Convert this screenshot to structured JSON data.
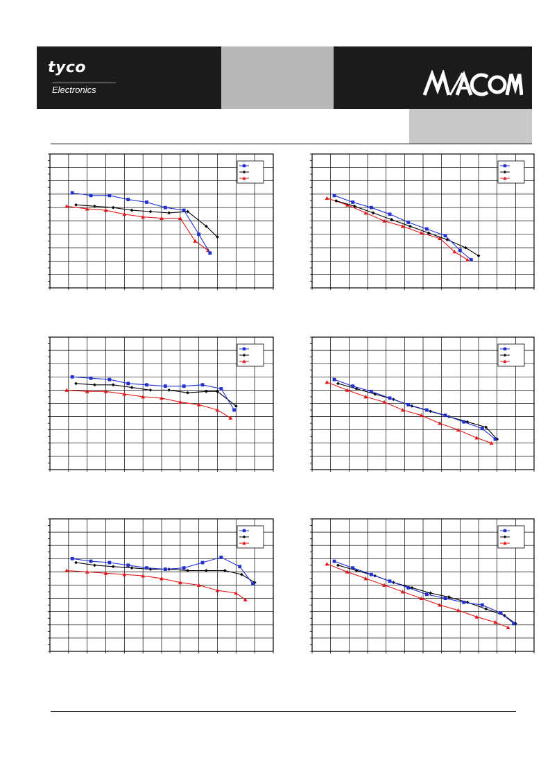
{
  "header": {
    "brand_left": "tyco",
    "brand_left_sub": "Electronics",
    "brand_right": "M/ACOM",
    "colors": {
      "band_dark": "#1b1b1b",
      "band_mid": "#b8b8b8",
      "subheader_box": "#c8c8c8"
    }
  },
  "series_style": [
    {
      "color": "#1f2fd0",
      "marker": "square"
    },
    {
      "color": "#000000",
      "marker": "diamond"
    },
    {
      "color": "#e01818",
      "marker": "triangle"
    }
  ],
  "chart_data": [
    {
      "type": "line",
      "title": "",
      "xlabel": "",
      "ylabel": "",
      "xlim": [
        0,
        12
      ],
      "ylim": [
        0,
        10
      ],
      "grid": true,
      "legend_position": "top-right",
      "series": [
        {
          "x": [
            1.2,
            2.2,
            3.2,
            4.2,
            5.2,
            6.2,
            7.2,
            8.0,
            8.6
          ],
          "y": [
            7.1,
            6.9,
            6.9,
            6.6,
            6.4,
            6.0,
            5.8,
            4.0,
            2.6
          ]
        },
        {
          "x": [
            1.4,
            2.4,
            3.4,
            4.4,
            5.4,
            6.4,
            7.4,
            8.4,
            9.0
          ],
          "y": [
            6.2,
            6.1,
            6.0,
            5.8,
            5.7,
            5.6,
            5.7,
            4.6,
            3.8
          ]
        },
        {
          "x": [
            0.9,
            2.0,
            3.0,
            4.0,
            5.0,
            6.0,
            7.0,
            7.8,
            8.5
          ],
          "y": [
            6.1,
            5.9,
            5.8,
            5.5,
            5.3,
            5.2,
            5.2,
            3.5,
            2.8
          ]
        }
      ]
    },
    {
      "type": "line",
      "title": "",
      "xlabel": "",
      "ylabel": "",
      "xlim": [
        0,
        12
      ],
      "ylim": [
        0,
        10
      ],
      "grid": true,
      "legend_position": "top-right",
      "series": [
        {
          "x": [
            1.2,
            2.2,
            3.2,
            4.2,
            5.2,
            6.2,
            7.2,
            8.0,
            8.6
          ],
          "y": [
            6.9,
            6.4,
            6.0,
            5.5,
            4.9,
            4.4,
            3.9,
            2.8,
            2.1
          ]
        },
        {
          "x": [
            1.3,
            2.3,
            3.3,
            4.3,
            5.3,
            6.3,
            7.3,
            8.3,
            9.0
          ],
          "y": [
            6.5,
            6.1,
            5.6,
            5.1,
            4.6,
            4.1,
            3.6,
            3.0,
            2.4
          ]
        },
        {
          "x": [
            0.8,
            1.9,
            2.9,
            3.9,
            4.9,
            5.9,
            6.9,
            7.7,
            8.4
          ],
          "y": [
            6.7,
            6.2,
            5.6,
            5.0,
            4.6,
            4.1,
            3.7,
            2.7,
            2.1
          ]
        }
      ]
    },
    {
      "type": "line",
      "title": "",
      "xlabel": "",
      "ylabel": "",
      "xlim": [
        0,
        12
      ],
      "ylim": [
        0,
        10
      ],
      "grid": true,
      "legend_position": "top-right",
      "series": [
        {
          "x": [
            1.2,
            2.2,
            3.2,
            4.2,
            5.2,
            6.2,
            7.2,
            8.2,
            9.2,
            9.9
          ],
          "y": [
            7.0,
            6.9,
            6.8,
            6.5,
            6.4,
            6.3,
            6.3,
            6.4,
            6.1,
            4.5
          ]
        },
        {
          "x": [
            1.4,
            2.4,
            3.4,
            4.4,
            5.4,
            6.4,
            7.4,
            8.4,
            9.0,
            10.0
          ],
          "y": [
            6.5,
            6.4,
            6.4,
            6.2,
            6.0,
            6.0,
            5.8,
            5.9,
            5.9,
            4.8
          ]
        },
        {
          "x": [
            0.9,
            2.0,
            3.0,
            4.0,
            5.0,
            6.0,
            7.0,
            8.0,
            9.0,
            9.7
          ],
          "y": [
            6.0,
            5.9,
            5.9,
            5.7,
            5.5,
            5.4,
            5.1,
            4.9,
            4.5,
            3.9
          ]
        }
      ]
    },
    {
      "type": "line",
      "title": "",
      "xlabel": "",
      "ylabel": "",
      "xlim": [
        0,
        12
      ],
      "ylim": [
        0,
        10
      ],
      "grid": true,
      "legend_position": "top-right",
      "series": [
        {
          "x": [
            1.2,
            2.2,
            3.2,
            4.2,
            5.2,
            6.2,
            7.2,
            8.2,
            9.2,
            9.9
          ],
          "y": [
            6.8,
            6.3,
            5.9,
            5.4,
            4.9,
            4.5,
            4.1,
            3.6,
            3.1,
            2.3
          ]
        },
        {
          "x": [
            1.4,
            2.4,
            3.4,
            4.4,
            5.4,
            6.4,
            7.4,
            8.4,
            9.4,
            10.0
          ],
          "y": [
            6.5,
            6.1,
            5.7,
            5.3,
            4.8,
            4.4,
            4.0,
            3.6,
            3.2,
            2.3
          ]
        },
        {
          "x": [
            0.8,
            1.9,
            2.9,
            3.9,
            4.9,
            5.9,
            6.9,
            7.9,
            8.9,
            9.7
          ],
          "y": [
            6.6,
            6.0,
            5.5,
            5.1,
            4.5,
            4.1,
            3.5,
            3.0,
            2.4,
            2.0
          ]
        }
      ]
    },
    {
      "type": "line",
      "title": "",
      "xlabel": "",
      "ylabel": "",
      "xlim": [
        0,
        12
      ],
      "ylim": [
        0,
        10
      ],
      "grid": true,
      "legend_position": "top-right",
      "series": [
        {
          "x": [
            1.2,
            2.2,
            3.2,
            4.2,
            5.2,
            6.2,
            7.2,
            8.2,
            9.2,
            10.2,
            10.9
          ],
          "y": [
            7.0,
            6.8,
            6.7,
            6.5,
            6.3,
            6.2,
            6.3,
            6.7,
            7.1,
            6.4,
            5.1
          ]
        },
        {
          "x": [
            1.4,
            2.4,
            3.4,
            4.4,
            5.4,
            6.4,
            7.4,
            8.4,
            9.4,
            10.3,
            11.0
          ],
          "y": [
            6.7,
            6.5,
            6.4,
            6.3,
            6.2,
            6.2,
            6.1,
            6.1,
            6.1,
            5.8,
            5.2
          ]
        },
        {
          "x": [
            0.9,
            2.0,
            3.0,
            4.0,
            5.0,
            6.0,
            7.0,
            8.0,
            9.0,
            10.0,
            10.5
          ],
          "y": [
            6.1,
            6.0,
            5.9,
            5.8,
            5.7,
            5.5,
            5.2,
            5.0,
            4.6,
            4.4,
            3.9
          ]
        }
      ]
    },
    {
      "type": "line",
      "title": "",
      "xlabel": "",
      "ylabel": "",
      "xlim": [
        0,
        12
      ],
      "ylim": [
        0,
        10
      ],
      "grid": true,
      "legend_position": "top-right",
      "series": [
        {
          "x": [
            1.2,
            2.2,
            3.2,
            4.2,
            5.2,
            6.2,
            7.2,
            8.2,
            9.2,
            10.2,
            10.9
          ],
          "y": [
            6.8,
            6.3,
            5.8,
            5.3,
            4.8,
            4.3,
            4.0,
            3.7,
            3.5,
            2.9,
            2.1
          ]
        },
        {
          "x": [
            1.4,
            2.4,
            3.4,
            4.4,
            5.4,
            6.4,
            7.4,
            8.4,
            9.4,
            10.4,
            11.0
          ],
          "y": [
            6.5,
            6.1,
            5.7,
            5.2,
            4.8,
            4.4,
            4.1,
            3.7,
            3.2,
            2.7,
            2.1
          ]
        },
        {
          "x": [
            0.8,
            1.9,
            2.9,
            3.9,
            4.9,
            5.9,
            6.9,
            7.9,
            8.9,
            9.9,
            10.6
          ],
          "y": [
            6.6,
            6.0,
            5.5,
            5.0,
            4.5,
            4.0,
            3.5,
            3.1,
            2.6,
            2.2,
            1.8
          ]
        }
      ]
    }
  ]
}
